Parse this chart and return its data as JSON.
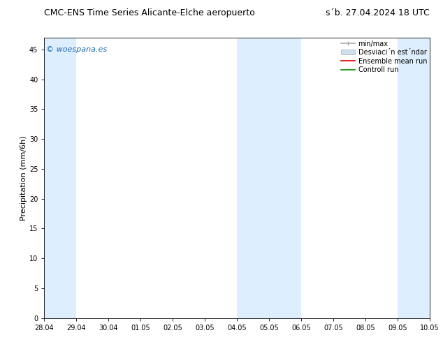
{
  "title_left": "CMC-ENS Time Series Alicante-Elche aeropuerto",
  "title_right": "s´b. 27.04.2024 18 UTC",
  "ylabel": "Precipitation (mm/6h)",
  "xlim": [
    0,
    12
  ],
  "ylim": [
    0,
    47
  ],
  "yticks": [
    0,
    5,
    10,
    15,
    20,
    25,
    30,
    35,
    40,
    45
  ],
  "xtick_labels": [
    "28.04",
    "29.04",
    "30.04",
    "01.05",
    "02.05",
    "03.05",
    "04.05",
    "05.05",
    "06.05",
    "07.05",
    "08.05",
    "09.05",
    "10.05"
  ],
  "background_color": "#ffffff",
  "plot_bg_color": "#ffffff",
  "shaded_bands": [
    {
      "x_start": 0,
      "x_end": 1,
      "color": "#ddeeff"
    },
    {
      "x_start": 6,
      "x_end": 8,
      "color": "#ddeeff"
    },
    {
      "x_start": 11,
      "x_end": 12,
      "color": "#ddeeff"
    }
  ],
  "watermark_text": "© woespana.es",
  "watermark_color": "#1a6ab5",
  "legend_entries": [
    {
      "label": "min/max",
      "color": "#aaaaaa",
      "lw": 1.2
    },
    {
      "label": "Desviaci´n est´ndar",
      "color": "#cce0f0",
      "lw": 6
    },
    {
      "label": "Ensemble mean run",
      "color": "#dd0000",
      "lw": 1.2
    },
    {
      "label": "Controll run",
      "color": "#008800",
      "lw": 1.2
    }
  ],
  "title_fontsize": 9,
  "tick_fontsize": 7,
  "ylabel_fontsize": 8,
  "watermark_fontsize": 8,
  "legend_fontsize": 7
}
